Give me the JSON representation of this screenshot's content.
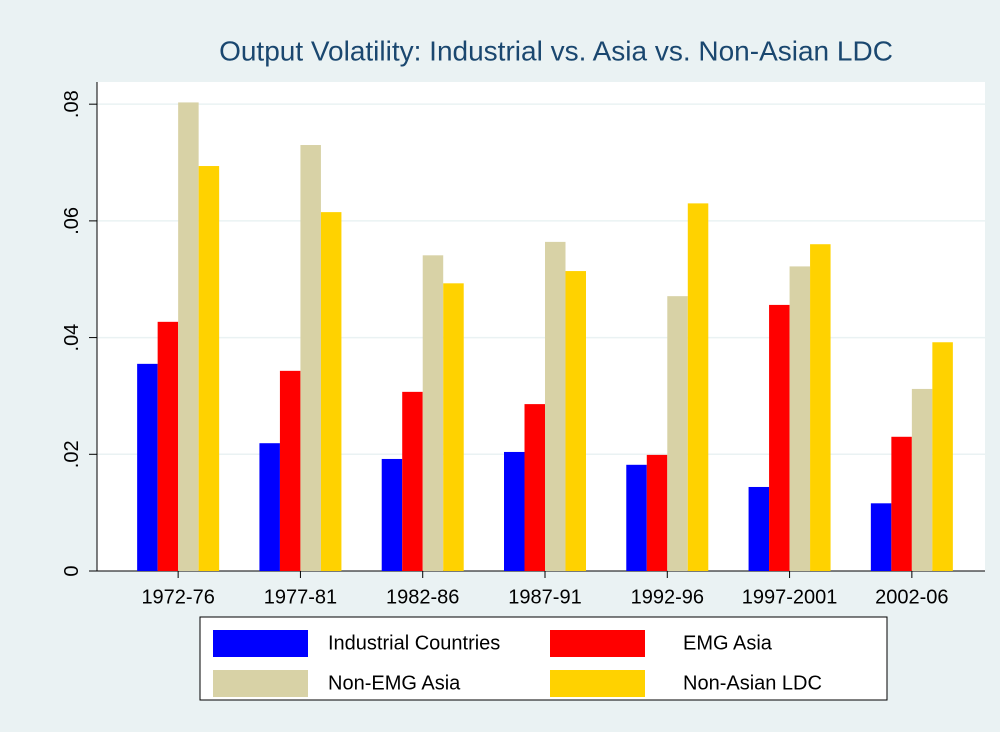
{
  "chart_data": {
    "type": "bar",
    "title": "Output Volatility: Industrial vs. Asia vs. Non-Asian LDC",
    "categories": [
      "1972-76",
      "1977-81",
      "1982-86",
      "1987-91",
      "1992-96",
      "1997-2001",
      "2002-06"
    ],
    "series": [
      {
        "name": "Industrial Countries",
        "color": "#0000ff",
        "values": [
          0.0355,
          0.0219,
          0.0192,
          0.0204,
          0.0182,
          0.0144,
          0.0116
        ]
      },
      {
        "name": "EMG Asia",
        "color": "#ff0000",
        "values": [
          0.0427,
          0.0343,
          0.0307,
          0.0286,
          0.0199,
          0.0456,
          0.023
        ]
      },
      {
        "name": "Non-EMG Asia",
        "color": "#d8d2a6",
        "values": [
          0.0803,
          0.073,
          0.0541,
          0.0564,
          0.0471,
          0.0522,
          0.0312
        ]
      },
      {
        "name": "Non-Asian LDC",
        "color": "#ffd200",
        "values": [
          0.0694,
          0.0615,
          0.0493,
          0.0514,
          0.063,
          0.056,
          0.0392
        ]
      }
    ],
    "ylim": [
      0,
      0.0838
    ],
    "yticks": [
      0,
      {
        "value": 0.02,
        "label": ".02"
      },
      {
        "value": 0.04,
        "label": ".04"
      },
      {
        "value": 0.06,
        "label": ".06"
      },
      {
        "value": 0.08,
        "label": ".08"
      }
    ],
    "grid": true,
    "legend": "bottom"
  }
}
